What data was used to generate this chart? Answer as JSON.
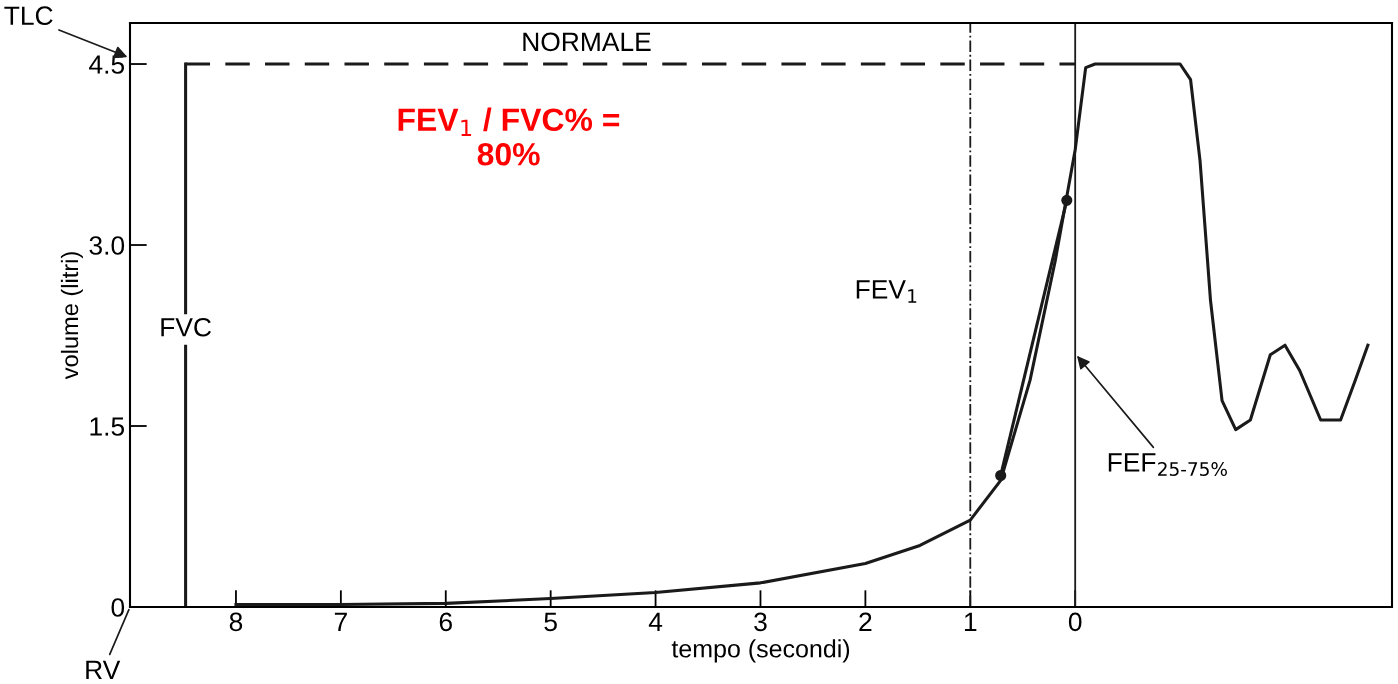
{
  "chart_data": {
    "type": "line",
    "xlabel": "tempo (secondi)",
    "ylabel": "volume (litri)",
    "xlim": [
      9.01,
      -3.02
    ],
    "xticks": [
      8,
      7,
      6,
      5,
      4,
      3,
      2,
      1,
      0
    ],
    "ylim": [
      0,
      4.84
    ],
    "yticks": [
      0,
      1.5,
      {
        "value": 3.0,
        "label": "3.0"
      },
      4.5
    ],
    "grid": false,
    "series": [
      {
        "color": "#1a1a1a",
        "line_style": "solid",
        "marker": "none",
        "x": [
          8,
          7,
          6,
          5,
          4,
          3,
          2,
          1.48,
          1.0,
          0.71,
          0.43,
          0.19,
          0,
          -0.1,
          -0.19,
          -1.0,
          -1.1,
          -1.19,
          -1.29,
          -1.4,
          -1.53,
          -1.67,
          -1.86,
          -2.0,
          -2.14,
          -2.34,
          -2.53,
          -2.67,
          -2.79
        ],
        "values": [
          0.02,
          0.02,
          0.03,
          0.07,
          0.12,
          0.2,
          0.36,
          0.51,
          0.72,
          1.05,
          1.88,
          2.87,
          3.79,
          4.47,
          4.5,
          4.5,
          4.37,
          3.7,
          2.54,
          1.71,
          1.47,
          1.55,
          2.09,
          2.17,
          1.96,
          1.55,
          1.55,
          1.88,
          2.17
        ]
      },
      {
        "color": "#1a1a1a",
        "line_style": "solid",
        "marker": "circle",
        "x": [
          0.71,
          0.08
        ],
        "values": [
          1.09,
          3.37
        ]
      },
      {
        "color": "#1a1a1a",
        "line_style": "solid",
        "marker": "none",
        "x": [
          8.48,
          8.48
        ],
        "values": [
          0,
          4.5
        ]
      },
      {
        "color": "#1a1a1a",
        "line_style": "dashed",
        "marker": "none",
        "x": [
          8.48,
          0
        ],
        "values": [
          4.5,
          4.5
        ]
      }
    ],
    "ref_lines": [
      {
        "axis": "x",
        "value": 1,
        "line_style": "dashdot",
        "color": "#1a1a1a"
      },
      {
        "axis": "x",
        "value": 0,
        "line_style": "solid",
        "color": "#1a1a1a"
      }
    ],
    "annotations": [
      "TLC",
      "RV",
      "NORMALE",
      {
        "text": "FVC",
        "x": 8.48,
        "y": 2.3
      },
      "FEV$_{1}$",
      {
        "text": "FEF$_{25-75%}$",
        "x": 0,
        "y": 2.1
      },
      "FEV$_{1}$ / FVC% =\n80%"
    ]
  }
}
